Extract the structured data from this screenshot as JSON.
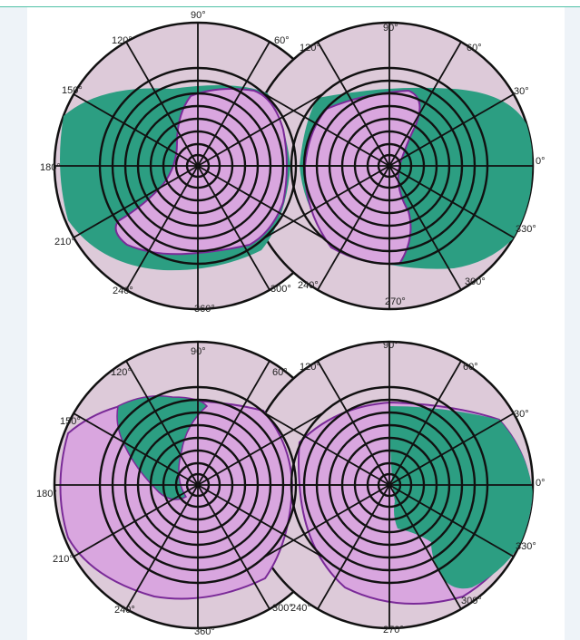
{
  "figure": {
    "colors": {
      "background": "#ddcad9",
      "field_purple": "#d9a6df",
      "field_purple_edge": "#7a2a98",
      "field_green": "#2c9e82",
      "grid": "#111111",
      "frame_accent": "#4fc1a6"
    },
    "panels": [
      {
        "left_eye": {
          "labels": {
            "deg90": "90°",
            "deg120": "120°",
            "deg60": "60°",
            "deg150": "150°",
            "deg180": "180°",
            "deg210": "210°",
            "deg240": "240°",
            "deg360": "360°",
            "deg300": "300°"
          },
          "green_region": "temporal loss — outer field except central nasal island",
          "purple_region": "preserved central/nasal field"
        },
        "right_eye": {
          "labels": {
            "deg90": "90°",
            "deg120": "120°",
            "deg60": "60°",
            "deg30": "30°",
            "deg0": "0°",
            "deg330": "330°",
            "deg300": "300°",
            "deg270": "270°",
            "deg240": "240°"
          }
        }
      },
      {
        "left_eye": {
          "labels": {
            "deg90": "90°",
            "deg120": "120°",
            "deg60": "60°",
            "deg150": "150°",
            "deg180": "180°",
            "deg210": "210°",
            "deg240": "240°",
            "deg360": "360°",
            "deg300": "300°"
          }
        },
        "right_eye": {
          "labels": {
            "deg90": "90°",
            "deg120": "120°",
            "deg60": "60°",
            "deg30": "30°",
            "deg0": "0°",
            "deg330": "330°",
            "deg300": "300°",
            "deg270": "270°",
            "deg240": "240°"
          }
        }
      }
    ]
  }
}
